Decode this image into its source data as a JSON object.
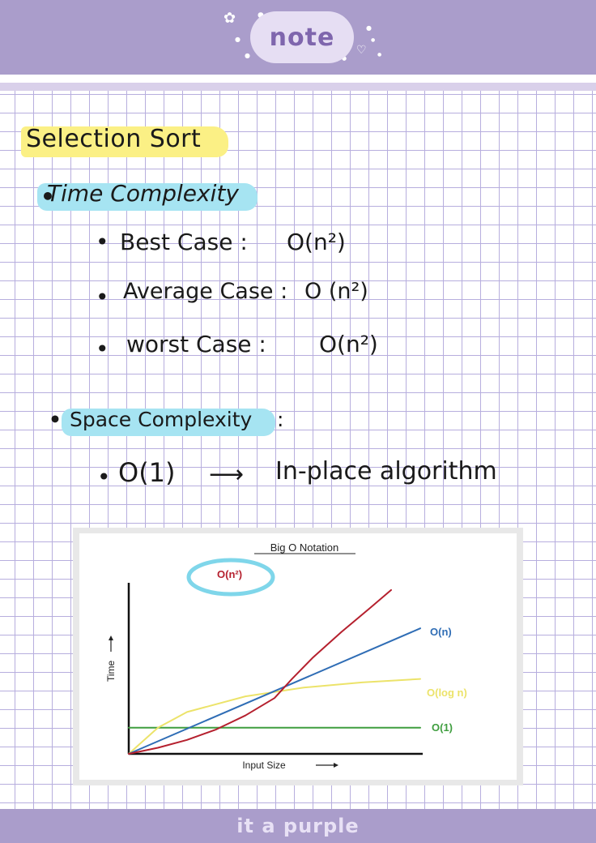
{
  "header": {
    "label": "note",
    "decorations": [
      "flower-icon",
      "heart-icon",
      "dot-icon"
    ]
  },
  "colors": {
    "header_band": "#aa9dcb",
    "grid_line": "#b7aede",
    "title_highlight": "#fbf085",
    "subheading_highlight": "#a6e4f2",
    "circle_annotation": "#7fd6ea"
  },
  "notes": {
    "title": "Selection Sort",
    "time_heading": "Time Complexity",
    "cases": [
      {
        "label": "Best Case :",
        "value": "O(n²)"
      },
      {
        "label": "Average Case :",
        "value": "O (n²)"
      },
      {
        "label": "worst Case :",
        "value": "O(n²)"
      }
    ],
    "space_heading": "Space Complexity",
    "space_colon": ":",
    "space_item": {
      "value": "O(1)",
      "arrow": "⟶",
      "text": "In-place algorithm"
    }
  },
  "chart_data": {
    "type": "line",
    "title": "Big O Notation",
    "xlabel": "Input Size",
    "ylabel": "Time",
    "grid": false,
    "legend": "line-end labels",
    "xlim": [
      0,
      10
    ],
    "ylim": [
      0,
      10
    ],
    "series": [
      {
        "name": "O(n²)",
        "color": "#b5202e",
        "x": [
          0,
          1,
          2,
          3,
          4,
          5,
          5.6,
          6.3,
          7.3,
          8.3,
          9.0
        ],
        "y": [
          0.0,
          0.35,
          0.8,
          1.4,
          2.2,
          3.2,
          4.3,
          5.5,
          7.0,
          8.4,
          9.4
        ]
      },
      {
        "name": "O(n)",
        "color": "#2f6db5",
        "x": [
          0,
          10
        ],
        "y": [
          0,
          7.2
        ]
      },
      {
        "name": "O(log n)",
        "color": "#ece36a",
        "x": [
          0,
          1,
          2,
          4,
          6,
          8,
          10
        ],
        "y": [
          0.0,
          1.5,
          2.4,
          3.3,
          3.8,
          4.1,
          4.3
        ]
      },
      {
        "name": "O(1)",
        "color": "#3f9e3f",
        "x": [
          0,
          10
        ],
        "y": [
          1.5,
          1.5
        ]
      }
    ]
  },
  "footer": {
    "text": "it a purple"
  }
}
